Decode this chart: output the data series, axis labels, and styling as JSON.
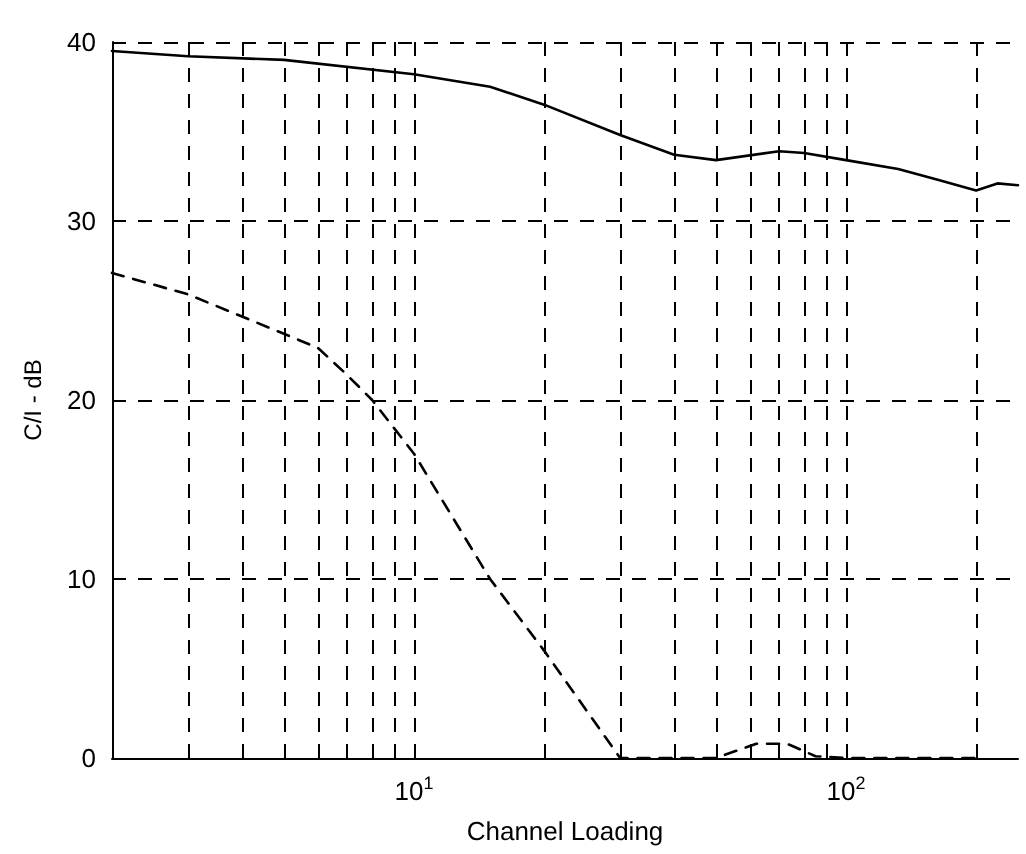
{
  "chart_data": {
    "type": "line",
    "xlabel": "Channel Loading",
    "ylabel": "C/I - dB",
    "log": "x",
    "grid": true,
    "marker": "none",
    "xlim": [
      2,
      250
    ],
    "ylim": [
      0,
      40
    ],
    "xticks": [
      {
        "value": 3,
        "label": null
      },
      {
        "value": 4,
        "label": null
      },
      {
        "value": 5,
        "label": null
      },
      {
        "value": 6,
        "label": null
      },
      {
        "value": 7,
        "label": null
      },
      {
        "value": 8,
        "label": null
      },
      {
        "value": 9,
        "label": null
      },
      {
        "value": 10,
        "label": "10$^{1}$"
      },
      {
        "value": 20,
        "label": null
      },
      {
        "value": 30,
        "label": null
      },
      {
        "value": 40,
        "label": null
      },
      {
        "value": 50,
        "label": null
      },
      {
        "value": 60,
        "label": null
      },
      {
        "value": 70,
        "label": null
      },
      {
        "value": 80,
        "label": null
      },
      {
        "value": 90,
        "label": null
      },
      {
        "value": 100,
        "label": "10$^{2}$"
      },
      {
        "value": 200,
        "label": null
      }
    ],
    "yticks": [
      0,
      10,
      20,
      30,
      40
    ],
    "series": [
      {
        "color": "#000000",
        "line_style": "solid",
        "x": [
          2,
          3,
          5,
          10,
          15,
          20,
          30,
          40,
          50,
          70,
          80,
          100,
          132,
          163,
          200,
          224,
          250
        ],
        "values": [
          39.5,
          39.2,
          39,
          38.2,
          37.5,
          36.5,
          34.8,
          33.7,
          33.4,
          33.9,
          33.8,
          33.4,
          32.9,
          32.3,
          31.7,
          32.1,
          32
        ]
      },
      {
        "color": "#000000",
        "line_style": "dashed",
        "x": [
          2,
          3,
          5,
          6,
          7,
          8,
          10,
          15,
          20,
          30,
          50,
          62,
          73,
          85,
          100,
          200
        ],
        "values": [
          27.1,
          25.9,
          23.7,
          22.9,
          21.4,
          20,
          17,
          10,
          6,
          0,
          0,
          0.8,
          0.8,
          0.1,
          0,
          0
        ]
      }
    ]
  }
}
